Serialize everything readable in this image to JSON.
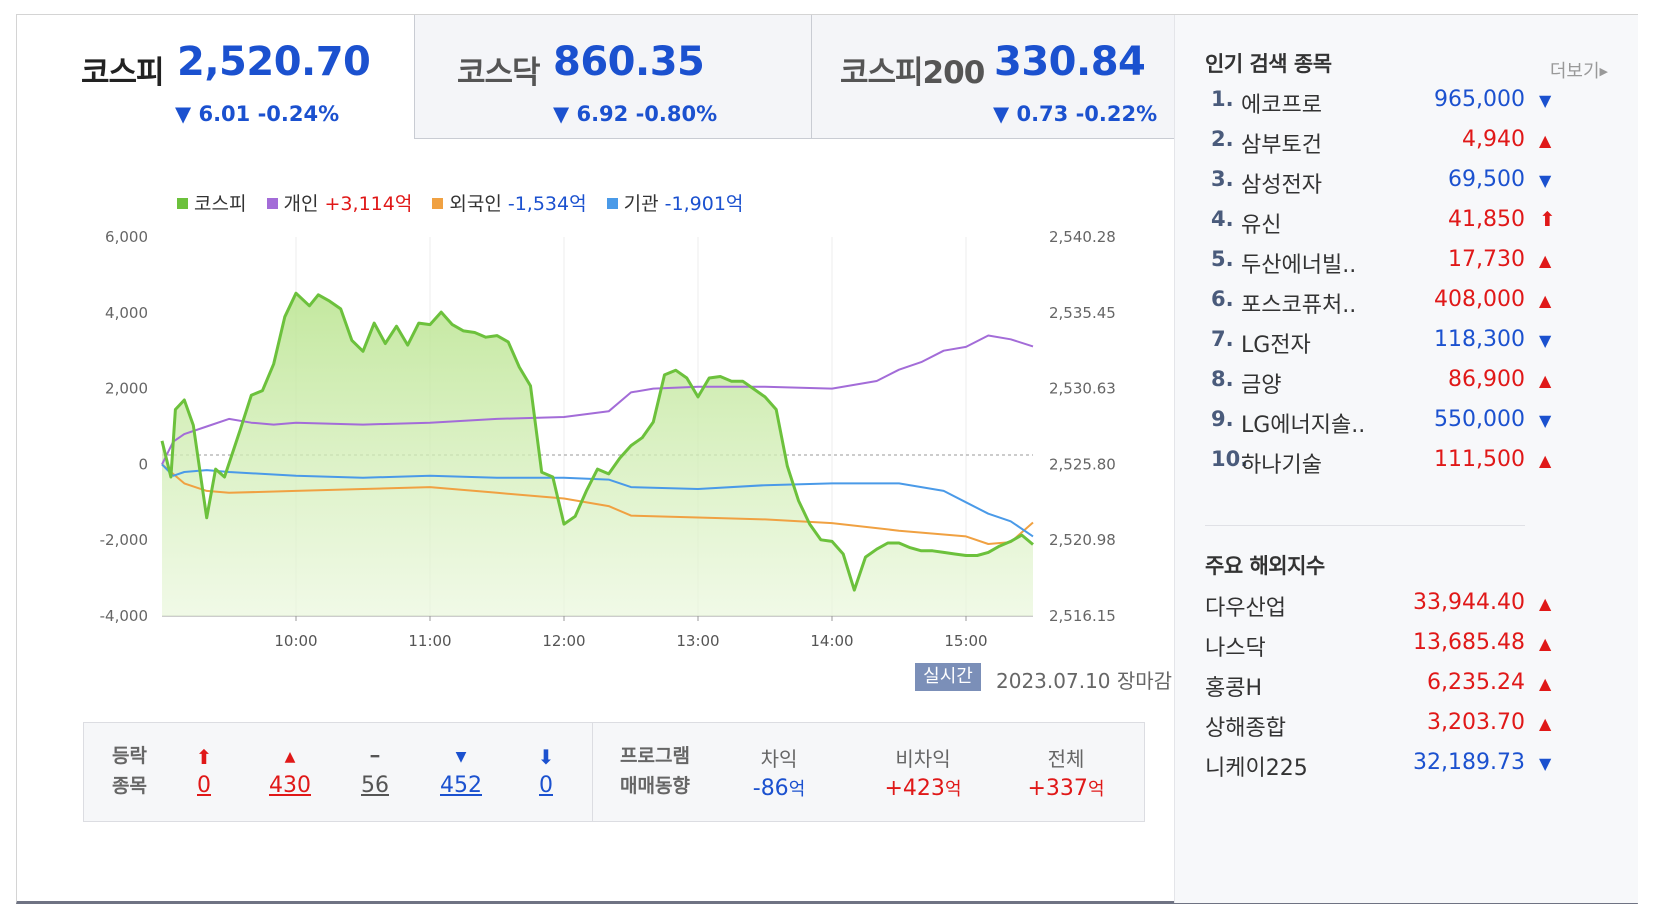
{
  "tabs": [
    {
      "name": "코스피",
      "value": "2,520.70",
      "change": "▼ 6.01 -0.24%"
    },
    {
      "name": "코스닥",
      "value": "860.35",
      "change": "▼ 6.92 -0.80%"
    },
    {
      "name": "코스피200",
      "value": "330.84",
      "change": "▼ 0.73 -0.22%"
    }
  ],
  "legend": {
    "kospi": "코스피",
    "individual": {
      "name": "개인",
      "value": "+3,114억"
    },
    "foreign": {
      "name": "외국인",
      "value": "-1,534억"
    },
    "institution": {
      "name": "기관",
      "value": "-1,901억"
    }
  },
  "colors": {
    "kospi": "#6cc13c",
    "individual": "#a36cd8",
    "foreign": "#f0a142",
    "institution": "#4a9ae8",
    "up": "#e01818",
    "down": "#1b51cf"
  },
  "chart_data": {
    "type": "line",
    "x_ticks": [
      "10:00",
      "11:00",
      "12:00",
      "13:00",
      "14:00",
      "15:00"
    ],
    "left_axis": {
      "ticks": [
        "6,000",
        "4,000",
        "2,000",
        "0",
        "-2,000",
        "-4,000"
      ],
      "range": [
        -4000,
        6000
      ]
    },
    "right_axis": {
      "ticks": [
        "2,540.28",
        "2,535.45",
        "2,530.63",
        "2,525.80",
        "2,520.98",
        "2,516.15"
      ],
      "range": [
        2516.15,
        2540.28
      ]
    },
    "reference_line": 2526.4,
    "time_range": [
      "09:00",
      "15:30"
    ],
    "series": [
      {
        "name": "코스피",
        "axis": "right",
        "t": [
          "09:00",
          "09:04",
          "09:06",
          "09:10",
          "09:14",
          "09:20",
          "09:24",
          "09:28",
          "09:35",
          "09:40",
          "09:45",
          "09:50",
          "09:55",
          "10:00",
          "10:06",
          "10:10",
          "10:15",
          "10:20",
          "10:25",
          "10:30",
          "10:35",
          "10:40",
          "10:45",
          "10:50",
          "10:55",
          "11:00",
          "11:05",
          "11:10",
          "11:15",
          "11:20",
          "11:25",
          "11:30",
          "11:35",
          "11:40",
          "11:45",
          "11:50",
          "11:55",
          "12:00",
          "12:05",
          "12:10",
          "12:15",
          "12:20",
          "12:25",
          "12:30",
          "12:35",
          "12:40",
          "12:45",
          "12:50",
          "12:55",
          "13:00",
          "13:05",
          "13:10",
          "13:15",
          "13:20",
          "13:25",
          "13:30",
          "13:35",
          "13:40",
          "13:45",
          "13:50",
          "13:55",
          "14:00",
          "14:05",
          "14:10",
          "14:15",
          "14:20",
          "14:25",
          "14:30",
          "14:35",
          "14:40",
          "14:45",
          "14:50",
          "14:55",
          "15:00",
          "15:05",
          "15:10",
          "15:15",
          "15:20",
          "15:25",
          "15:30"
        ],
        "y": [
          2527.3,
          2525.0,
          2529.3,
          2529.9,
          2528.3,
          2522.4,
          2525.5,
          2525.0,
          2528.0,
          2530.2,
          2530.5,
          2532.2,
          2535.2,
          2536.7,
          2535.9,
          2536.6,
          2536.2,
          2535.7,
          2533.7,
          2533.0,
          2534.8,
          2533.5,
          2534.6,
          2533.4,
          2534.8,
          2534.7,
          2535.5,
          2534.7,
          2534.3,
          2534.2,
          2533.9,
          2534.0,
          2533.6,
          2532.0,
          2530.8,
          2525.3,
          2525.0,
          2522.0,
          2522.5,
          2524.1,
          2525.5,
          2525.2,
          2526.2,
          2527.0,
          2527.5,
          2528.5,
          2531.5,
          2531.8,
          2531.3,
          2530.1,
          2531.3,
          2531.4,
          2531.1,
          2531.1,
          2530.6,
          2530.1,
          2529.3,
          2525.7,
          2523.5,
          2522.0,
          2521.0,
          2520.9,
          2520.1,
          2517.8,
          2519.9,
          2520.4,
          2520.8,
          2520.8,
          2520.5,
          2520.3,
          2520.3,
          2520.2,
          2520.1,
          2520.0,
          2520.0,
          2520.2,
          2520.6,
          2520.9,
          2521.3,
          2520.7
        ]
      },
      {
        "name": "개인",
        "axis": "left",
        "t": [
          "09:00",
          "09:05",
          "09:10",
          "09:20",
          "09:30",
          "09:40",
          "09:50",
          "10:00",
          "10:30",
          "11:00",
          "11:30",
          "12:00",
          "12:20",
          "12:30",
          "12:40",
          "13:00",
          "13:30",
          "14:00",
          "14:20",
          "14:30",
          "14:40",
          "14:50",
          "15:00",
          "15:10",
          "15:20",
          "15:30"
        ],
        "y": [
          0,
          600,
          800,
          1000,
          1200,
          1100,
          1050,
          1100,
          1050,
          1100,
          1200,
          1250,
          1400,
          1900,
          2000,
          2050,
          2050,
          2000,
          2200,
          2500,
          2700,
          3000,
          3100,
          3400,
          3300,
          3114
        ]
      },
      {
        "name": "외국인",
        "axis": "left",
        "t": [
          "09:00",
          "09:10",
          "09:20",
          "09:30",
          "10:00",
          "10:30",
          "11:00",
          "11:30",
          "12:00",
          "12:20",
          "12:30",
          "13:00",
          "13:30",
          "14:00",
          "14:30",
          "15:00",
          "15:10",
          "15:20",
          "15:30"
        ],
        "y": [
          0,
          -500,
          -700,
          -750,
          -700,
          -650,
          -600,
          -750,
          -900,
          -1100,
          -1350,
          -1400,
          -1450,
          -1550,
          -1750,
          -1900,
          -2100,
          -2050,
          -1534
        ]
      },
      {
        "name": "기관",
        "axis": "left",
        "t": [
          "09:00",
          "09:05",
          "09:10",
          "09:20",
          "09:30",
          "10:00",
          "10:30",
          "11:00",
          "11:30",
          "12:00",
          "12:20",
          "12:30",
          "13:00",
          "13:30",
          "14:00",
          "14:30",
          "14:50",
          "15:00",
          "15:10",
          "15:20",
          "15:30"
        ],
        "y": [
          0,
          -300,
          -200,
          -150,
          -200,
          -300,
          -350,
          -300,
          -350,
          -350,
          -400,
          -600,
          -650,
          -550,
          -500,
          -500,
          -700,
          -1000,
          -1300,
          -1500,
          -1901
        ]
      }
    ]
  },
  "realtime": {
    "badge": "실시간",
    "date": "2023.07.10 장마감"
  },
  "breadth": {
    "label_line1": "등락",
    "label_line2": "종목",
    "items": [
      {
        "icon": "⬆",
        "value": "0",
        "color": "up"
      },
      {
        "icon": "▲",
        "value": "430",
        "color": "up"
      },
      {
        "icon": "━",
        "value": "56",
        "color": "flat"
      },
      {
        "icon": "▼",
        "value": "452",
        "color": "down"
      },
      {
        "icon": "⬇",
        "value": "0",
        "color": "down"
      }
    ]
  },
  "program": {
    "label_line1": "프로그램",
    "label_line2": "매매동향",
    "items": [
      {
        "header": "차익",
        "value": "-86",
        "unit": "억",
        "color": "down"
      },
      {
        "header": "비차익",
        "value": "+423",
        "unit": "억",
        "color": "up"
      },
      {
        "header": "전체",
        "value": "+337",
        "unit": "억",
        "color": "up"
      }
    ]
  },
  "popular": {
    "title": "인기 검색 종목",
    "more": "더보기",
    "items": [
      {
        "rank": "1.",
        "name": "에코프로",
        "price": "965,000",
        "dir": "down"
      },
      {
        "rank": "2.",
        "name": "삼부토건",
        "price": "4,940",
        "dir": "up"
      },
      {
        "rank": "3.",
        "name": "삼성전자",
        "price": "69,500",
        "dir": "down"
      },
      {
        "rank": "4.",
        "name": "유신",
        "price": "41,850",
        "dir": "upper"
      },
      {
        "rank": "5.",
        "name": "두산에너빌..",
        "price": "17,730",
        "dir": "up"
      },
      {
        "rank": "6.",
        "name": "포스코퓨처..",
        "price": "408,000",
        "dir": "up"
      },
      {
        "rank": "7.",
        "name": "LG전자",
        "price": "118,300",
        "dir": "down"
      },
      {
        "rank": "8.",
        "name": "금양",
        "price": "86,900",
        "dir": "up"
      },
      {
        "rank": "9.",
        "name": "LG에너지솔..",
        "price": "550,000",
        "dir": "down"
      },
      {
        "rank": "10.",
        "name": "하나기술",
        "price": "111,500",
        "dir": "up"
      }
    ]
  },
  "overseas": {
    "title": "주요 해외지수",
    "items": [
      {
        "name": "다우산업",
        "value": "33,944.40",
        "dir": "up"
      },
      {
        "name": "나스닥",
        "value": "13,685.48",
        "dir": "up"
      },
      {
        "name": "홍콩H",
        "value": "6,235.24",
        "dir": "up"
      },
      {
        "name": "상해종합",
        "value": "3,203.70",
        "dir": "up"
      },
      {
        "name": "니케이225",
        "value": "32,189.73",
        "dir": "down"
      }
    ]
  }
}
